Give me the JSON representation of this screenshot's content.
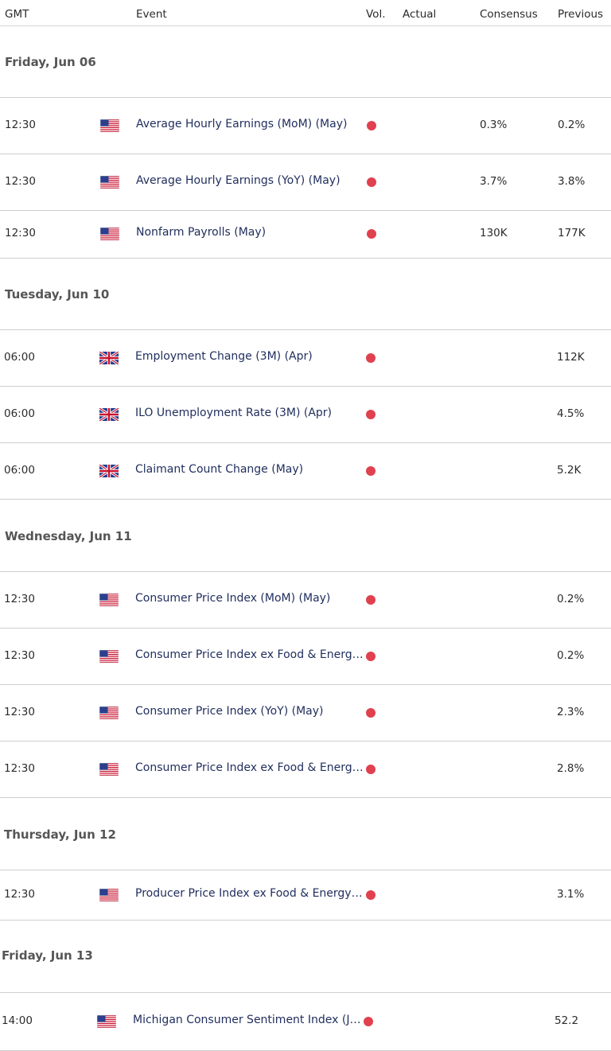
{
  "columns": {
    "time": "GMT",
    "event": "Event",
    "volatility": "Vol.",
    "actual": "Actual",
    "consensus": "Consensus",
    "previous": "Previous"
  },
  "colors": {
    "volatility_high": "#e0414f",
    "event_text": "#1f2d5c"
  },
  "sections": [
    {
      "day": "Friday, Jun 06",
      "events": [
        {
          "time": "12:30",
          "country": "US",
          "flag_icon": "us-flag-icon",
          "event": "Average Hourly Earnings (MoM) (May)",
          "volatility": "high",
          "actual": "",
          "consensus": "0.3%",
          "previous": "0.2%"
        },
        {
          "time": "12:30",
          "country": "US",
          "flag_icon": "us-flag-icon",
          "event": "Average Hourly Earnings (YoY) (May)",
          "volatility": "high",
          "actual": "",
          "consensus": "3.7%",
          "previous": "3.8%"
        },
        {
          "time": "12:30",
          "country": "US",
          "flag_icon": "us-flag-icon",
          "event": "Nonfarm Payrolls (May)",
          "volatility": "high",
          "actual": "",
          "consensus": "130K",
          "previous": "177K"
        }
      ]
    },
    {
      "day": "Tuesday, Jun 10",
      "events": [
        {
          "time": "06:00",
          "country": "UK",
          "flag_icon": "uk-flag-icon",
          "event": "Employment Change (3M) (Apr)",
          "volatility": "high",
          "actual": "",
          "consensus": "",
          "previous": "112K"
        },
        {
          "time": "06:00",
          "country": "UK",
          "flag_icon": "uk-flag-icon",
          "event": "ILO Unemployment Rate (3M) (Apr)",
          "volatility": "high",
          "actual": "",
          "consensus": "",
          "previous": "4.5%"
        },
        {
          "time": "06:00",
          "country": "UK",
          "flag_icon": "uk-flag-icon",
          "event": "Claimant Count Change (May)",
          "volatility": "high",
          "actual": "",
          "consensus": "",
          "previous": "5.2K"
        }
      ]
    },
    {
      "day": "Wednesday, Jun 11",
      "events": [
        {
          "time": "12:30",
          "country": "US",
          "flag_icon": "us-flag-icon",
          "event": "Consumer Price Index (MoM) (May)",
          "volatility": "high",
          "actual": "",
          "consensus": "",
          "previous": "0.2%"
        },
        {
          "time": "12:30",
          "country": "US",
          "flag_icon": "us-flag-icon",
          "event": "Consumer Price Index ex Food & Energy …",
          "volatility": "high",
          "actual": "",
          "consensus": "",
          "previous": "0.2%"
        },
        {
          "time": "12:30",
          "country": "US",
          "flag_icon": "us-flag-icon",
          "event": "Consumer Price Index (YoY) (May)",
          "volatility": "high",
          "actual": "",
          "consensus": "",
          "previous": "2.3%"
        },
        {
          "time": "12:30",
          "country": "US",
          "flag_icon": "us-flag-icon",
          "event": "Consumer Price Index ex Food & Energy …",
          "volatility": "high",
          "actual": "",
          "consensus": "",
          "previous": "2.8%"
        }
      ]
    },
    {
      "day": "Thursday, Jun 12",
      "events": [
        {
          "time": "12:30",
          "country": "US",
          "flag_icon": "us-flag-icon",
          "event": "Producer Price Index ex Food & Energy (…",
          "volatility": "high",
          "actual": "",
          "consensus": "",
          "previous": "3.1%"
        }
      ]
    },
    {
      "day": "Friday, Jun 13",
      "events": [
        {
          "time": "14:00",
          "country": "US",
          "flag_icon": "us-flag-icon",
          "event": "Michigan Consumer Sentiment Index (J…",
          "volatility": "high",
          "actual": "",
          "consensus": "",
          "previous": "52.2"
        }
      ]
    }
  ]
}
